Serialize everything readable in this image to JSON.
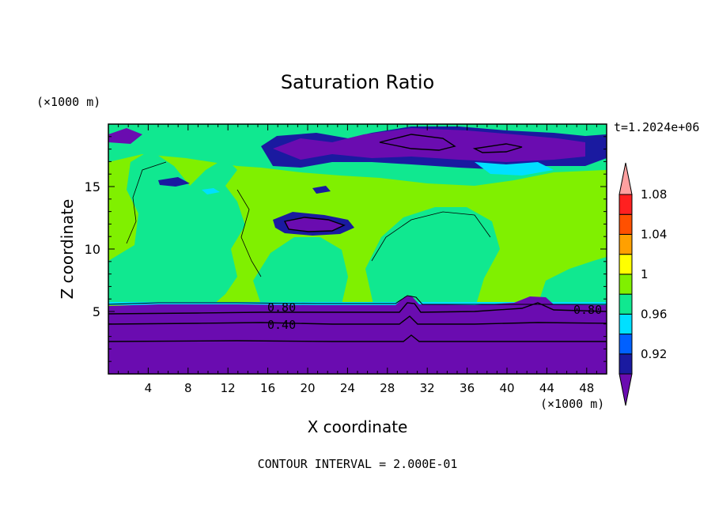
{
  "chart_data": {
    "type": "heatmap",
    "title": "Saturation Ratio",
    "xlabel": "X coordinate",
    "ylabel": "Z coordinate",
    "x_unit": "(×1000 m)",
    "y_unit": "(×1000 m)",
    "time_label": "t=1.2024e+06",
    "footer": "CONTOUR INTERVAL = 2.000E-01",
    "xlim": [
      0,
      50
    ],
    "ylim": [
      0,
      20
    ],
    "x_ticks": [
      "4",
      "8",
      "12",
      "16",
      "20",
      "24",
      "28",
      "32",
      "36",
      "40",
      "44",
      "48"
    ],
    "y_ticks": [
      "5",
      "10",
      "15"
    ],
    "colorbar": {
      "labels": [
        "0.92",
        "0.96",
        "1",
        "1.04",
        "1.08"
      ],
      "colors": [
        "#6a0cb0",
        "#1a1aa0",
        "#0060ff",
        "#00e0ff",
        "#10e890",
        "#80f000",
        "#ffff00",
        "#ffa000",
        "#ff5000",
        "#ff2020",
        "#ffa0a0"
      ]
    },
    "contour_labels": [
      "0.80",
      "0.40",
      "0.80"
    ],
    "colors": {
      "purple": "#6a0cb0",
      "navy": "#1a1aa0",
      "blue": "#0060ff",
      "cyan": "#00e0ff",
      "teal": "#10e890",
      "lime": "#80f000"
    }
  }
}
